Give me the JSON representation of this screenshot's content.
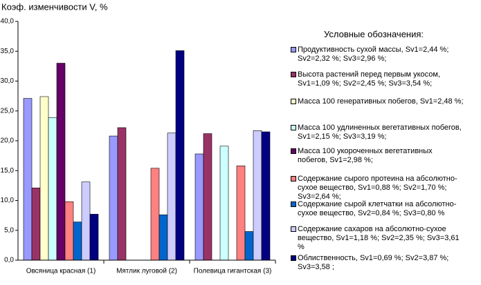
{
  "chart_data": {
    "type": "bar",
    "title": "Коэф. изменчивости V, %",
    "legend_title": "Условные обозначения:",
    "categories": [
      "Овсяница красная (1)",
      "Мятлик луговой (2)",
      "Полевица гигантская (3)"
    ],
    "ylim": [
      0,
      40
    ],
    "yticks": [
      {
        "value": 0,
        "label": "0,0"
      },
      {
        "value": 5,
        "label": "5,0"
      },
      {
        "value": 10,
        "label": "10,0"
      },
      {
        "value": 15,
        "label": "15,0"
      },
      {
        "value": 20,
        "label": "20,0"
      },
      {
        "value": 25,
        "label": "25,0"
      },
      {
        "value": 30,
        "label": "30,0"
      },
      {
        "value": 35,
        "label": "35,0"
      },
      {
        "value": 40,
        "label": "40,0"
      }
    ],
    "grid": false,
    "legend": "right",
    "series": [
      {
        "name": "Продуктивность сухой массы, Sv1=2,44 %; Sv2=2,32 %; Sv3=2,96 %;",
        "color": "#9999ff",
        "values": [
          27.1,
          20.8,
          17.8
        ]
      },
      {
        "name": "Высота растений перед первым укосом, Sv1=1,09 %; Sv2=2,45 %; Sv3=3,54 %;",
        "color": "#993366",
        "values": [
          12.1,
          22.2,
          21.2
        ]
      },
      {
        "name": "Масса 100 генеративных побегов, Sv1=2,48 %;",
        "color": "#ffffcc",
        "values": [
          27.4,
          null,
          null
        ]
      },
      {
        "name": "Масса 100 удлиненных вегетативных побегов, Sv1=2,15 %; Sv3=3,19 %;",
        "color": "#ccffff",
        "values": [
          23.9,
          null,
          19.1
        ]
      },
      {
        "name": "Масса 100 укороченных вегетативных побегов, Sv1=2,98 %;",
        "color": "#660066",
        "values": [
          33.0,
          null,
          null
        ]
      },
      {
        "name": "Содержание сырого протеина на абсолютно- сухое вещество, Sv1=0,88 %; Sv2=1,70 %; Sv3=2,64 %;",
        "color": "#ff8080",
        "values": [
          9.8,
          15.4,
          15.8
        ]
      },
      {
        "name": "Содержание сырой клетчатки на абсолютно-сухое вещество, Sv2=0,84 %; Sv3=0,80 %",
        "color": "#0066cc",
        "values": [
          6.4,
          7.6,
          4.8
        ]
      },
      {
        "name": "Содержание сахаров на абсолютно-сухое вещество, Sv1=1,18 %; Sv2=2,35 %; Sv3=3,61 %",
        "color": "#ccccff",
        "values": [
          13.1,
          21.3,
          21.7
        ]
      },
      {
        "name": "Облиственность, Sv1=0,69 %; Sv2=3,87 %; Sv3=3,58 ;",
        "color": "#000080",
        "values": [
          7.7,
          35.1,
          21.5
        ]
      }
    ]
  }
}
